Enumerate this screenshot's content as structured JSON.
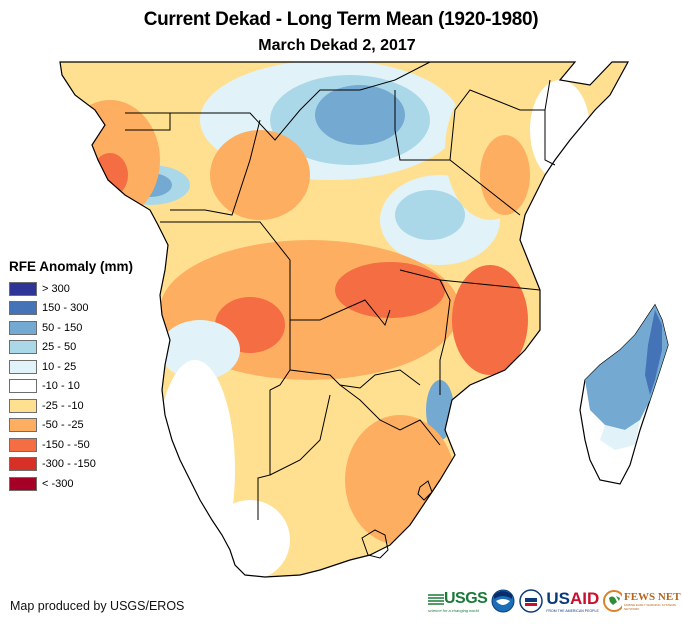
{
  "title": "Current Dekad - Long Term Mean (1920-1980)",
  "subtitle": "March Dekad 2, 2017",
  "legend": {
    "title": "RFE Anomaly (mm)",
    "items": [
      {
        "label": "> 300",
        "color": "#2f3596"
      },
      {
        "label": "150 - 300",
        "color": "#4573b8"
      },
      {
        "label": "50 - 150",
        "color": "#74a9d1"
      },
      {
        "label": "25 - 50",
        "color": "#abd8e8"
      },
      {
        "label": "10 - 25",
        "color": "#e1f3f8"
      },
      {
        "label": "-10 - 10",
        "color": "#ffffff"
      },
      {
        "label": "-25 - -10",
        "color": "#fee090"
      },
      {
        "label": "-50 - -25",
        "color": "#fdae61"
      },
      {
        "label": "-150 - -50",
        "color": "#f46d43"
      },
      {
        "label": "-300 - -150",
        "color": "#d73027"
      },
      {
        "label": "< -300",
        "color": "#a50026"
      }
    ]
  },
  "credit": "Map produced by USGS/EROS",
  "logos": {
    "usgs": {
      "name": "USGS",
      "tagline": "science for a changing world"
    },
    "noaa": {
      "name": "NOAA"
    },
    "usaid": {
      "name_us": "US",
      "name_aid": "AID",
      "tagline": "FROM THE AMERICAN PEOPLE"
    },
    "fews": {
      "name": "FEWS NET",
      "tagline": "FAMINE EARLY WARNING SYSTEMS NETWORK"
    }
  },
  "map": {
    "region": "Southern and Eastern Africa with Madagascar",
    "variable": "Rainfall Estimate (RFE) anomaly",
    "regions": [
      {
        "name": "central-africa-north",
        "category": "50 - 150"
      },
      {
        "name": "west-central-coast",
        "category": "-50 - -25"
      },
      {
        "name": "east-africa-kenya-somalia",
        "category": "-25 - -10"
      },
      {
        "name": "tanzania",
        "category": "10 - 25"
      },
      {
        "name": "angola-zambia",
        "category": "-50 - -25"
      },
      {
        "name": "zambia-malawi-mozambique-core",
        "category": "-150 - -50"
      },
      {
        "name": "botswana-namibia",
        "category": "-25 - -10"
      },
      {
        "name": "south-africa-east",
        "category": "-50 - -25"
      },
      {
        "name": "namibia-coast",
        "category": "-10 - 10"
      },
      {
        "name": "madagascar-north",
        "category": "50 - 150"
      },
      {
        "name": "madagascar-south",
        "category": "-10 - 10"
      }
    ]
  }
}
